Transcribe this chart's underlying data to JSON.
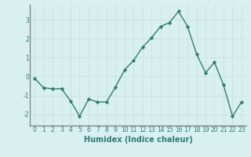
{
  "x": [
    0,
    1,
    2,
    3,
    4,
    5,
    6,
    7,
    8,
    9,
    10,
    11,
    12,
    13,
    14,
    15,
    16,
    17,
    18,
    19,
    20,
    21,
    22,
    23
  ],
  "y": [
    -0.1,
    -0.6,
    -0.65,
    -0.65,
    -1.3,
    -2.1,
    -1.2,
    -1.35,
    -1.35,
    -0.55,
    0.35,
    0.85,
    1.55,
    2.05,
    2.65,
    2.85,
    3.45,
    2.65,
    1.2,
    0.2,
    0.75,
    -0.45,
    -2.1,
    -1.35
  ],
  "line_color": "#2e7d6e",
  "marker": "D",
  "marker_size": 2.2,
  "background_color": "#d8f0ef",
  "grid_color": "#c8dcdc",
  "spine_color": "#888888",
  "xlabel": "Humidex (Indice chaleur)",
  "xlim": [
    -0.5,
    23.5
  ],
  "ylim": [
    -2.6,
    3.8
  ],
  "yticks": [
    -2,
    -1,
    0,
    1,
    2,
    3
  ],
  "xticks": [
    0,
    1,
    2,
    3,
    4,
    5,
    6,
    7,
    8,
    9,
    10,
    11,
    12,
    13,
    14,
    15,
    16,
    17,
    18,
    19,
    20,
    21,
    22,
    23
  ],
  "tick_fontsize": 5.5,
  "xlabel_fontsize": 7.0,
  "line_width": 1.0
}
